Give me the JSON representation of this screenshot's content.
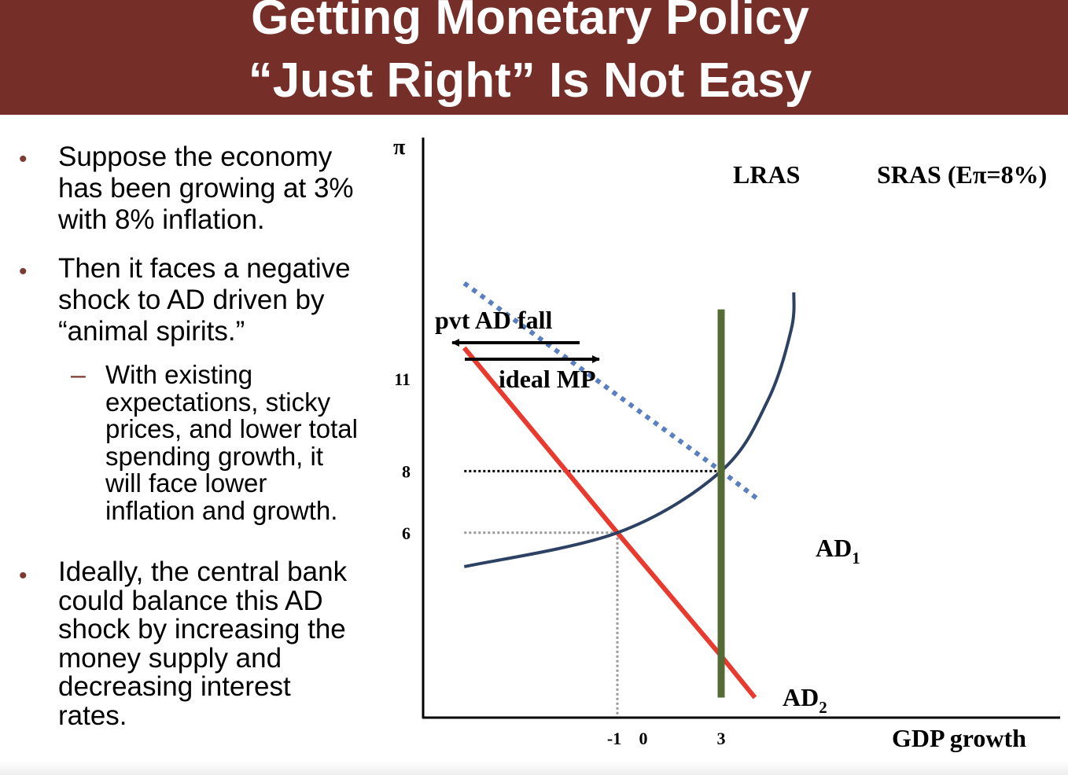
{
  "slide": {
    "title_line1": "Getting Monetary Policy",
    "title_line2": "“Just Right” Is Not Easy"
  },
  "bullets": [
    {
      "lines": [
        "Suppose the economy",
        "has been growing at 3%",
        "with 8% inflation."
      ]
    },
    {
      "lines": [
        "Then it faces a negative",
        "shock to AD driven by",
        "“animal spirits.”"
      ],
      "sub": {
        "lines": [
          "With existing",
          "expectations, sticky",
          "prices, and lower total",
          "spending growth, it",
          "will face lower",
          "inflation and growth."
        ]
      }
    },
    {
      "lines": [
        "Ideally, the central bank",
        "could balance this AD",
        "shock by increasing the",
        "money supply and",
        "decreasing interest",
        "rates."
      ]
    }
  ],
  "chart_data": {
    "type": "line",
    "title": "",
    "xlabel": "GDP growth",
    "ylabel": "π",
    "x_ticks": [
      "-1",
      "0",
      "3"
    ],
    "y_ticks": [
      "11",
      "8",
      "6"
    ],
    "series": [
      {
        "name": "AD",
        "subscript": "1",
        "style": "dotted",
        "color": "#5a7fbf",
        "points": [
          [
            -6.9,
            14.1
          ],
          [
            3,
            8
          ],
          [
            4.4,
            7.1
          ]
        ]
      },
      {
        "name": "AD",
        "subscript": "2",
        "style": "solid",
        "color": "#e83a2e",
        "points": [
          [
            -6.9,
            12
          ],
          [
            -1,
            6
          ],
          [
            3,
            2
          ],
          [
            4.3,
            0.65
          ]
        ]
      },
      {
        "name": "SRAS (Eπ=8%)",
        "style": "solid",
        "color": "#2d4263",
        "points": [
          [
            -6.9,
            4.9
          ],
          [
            -1,
            6
          ],
          [
            3,
            8
          ],
          [
            4.8,
            10.3
          ],
          [
            5.7,
            12.6
          ],
          [
            5.8,
            13.8
          ]
        ]
      },
      {
        "name": "LRAS",
        "style": "solid",
        "color": "#556b35",
        "points": [
          [
            3,
            0.65
          ],
          [
            3,
            13.25
          ]
        ]
      }
    ],
    "reference_lines": [
      {
        "from": [
          -6.9,
          8
        ],
        "to": [
          3,
          8
        ],
        "style": "dotted",
        "color": "#000000"
      },
      {
        "from": [
          -6.9,
          6
        ],
        "to": [
          -1,
          6
        ],
        "style": "dotted",
        "color": "#999999"
      },
      {
        "from": [
          -1,
          6
        ],
        "to": [
          -1,
          0
        ],
        "style": "dotted",
        "color": "#999999"
      }
    ],
    "annotations": [
      {
        "text": "pvt AD fall",
        "arrow": "left"
      },
      {
        "text": "ideal MP",
        "arrow": "right"
      }
    ],
    "colors": {
      "title_bar": "#762f28",
      "bullet": "#7d3a32"
    }
  }
}
